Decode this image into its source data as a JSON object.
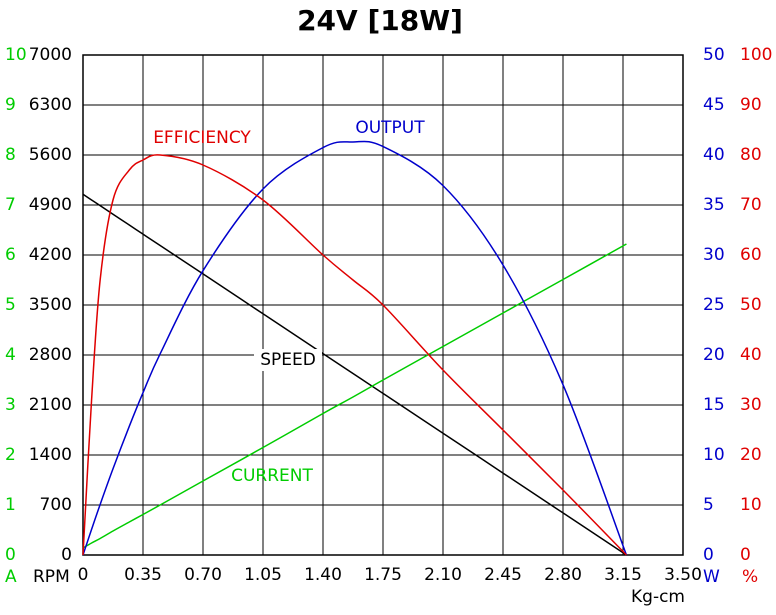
{
  "chart_data": {
    "type": "line",
    "title": "24V [18W]",
    "x_label": "Kg-cm",
    "x": [
      0,
      0.05,
      0.1,
      0.175,
      0.27,
      0.35,
      0.45,
      0.7,
      1.05,
      1.4,
      1.575,
      1.75,
      2.1,
      2.45,
      2.8,
      3.17
    ],
    "xlim": [
      0,
      3.5
    ],
    "xticks": [
      0,
      0.35,
      {
        "value": 0.7,
        "label": "0.70"
      },
      1.05,
      {
        "value": 1.4,
        "label": "1.40"
      },
      1.75,
      {
        "value": 2.1,
        "label": "2.10"
      },
      2.45,
      {
        "value": 2.8,
        "label": "2.80"
      },
      3.15,
      {
        "value": 3.5,
        "label": "3.50"
      }
    ],
    "axes": [
      {
        "label": "A",
        "color": "#00cc00",
        "lim": [
          0,
          10
        ],
        "ticks": [
          0,
          1,
          2,
          3,
          4,
          5,
          6,
          7,
          8,
          9,
          10
        ]
      },
      {
        "label": "RPM",
        "color": "#000000",
        "lim": [
          0,
          7000
        ],
        "ticks": [
          0,
          700,
          1400,
          2100,
          2800,
          3500,
          4200,
          4900,
          5600,
          6300,
          7000
        ]
      },
      {
        "label": "W",
        "color": "#0000cc",
        "lim": [
          0,
          50
        ],
        "ticks": [
          0,
          5,
          10,
          15,
          20,
          25,
          30,
          35,
          40,
          45,
          50
        ]
      },
      {
        "label": "%",
        "color": "#e00000",
        "lim": [
          0,
          100
        ],
        "ticks": [
          0,
          10,
          20,
          30,
          40,
          50,
          60,
          70,
          80,
          90,
          100
        ]
      }
    ],
    "grid": true,
    "series": [
      {
        "name": "SPEED",
        "color": "#000000",
        "axis": 1,
        "values": [
          5050,
          4970,
          4891,
          4771,
          4620,
          4492,
          4333,
          3935,
          3377,
          2820,
          2541,
          2262,
          1705,
          1147,
          589,
          0
        ]
      },
      {
        "name": "CURRENT",
        "color": "#00cc00",
        "axis": 0,
        "values": [
          0.14,
          0.24,
          0.33,
          0.48,
          0.66,
          0.81,
          1.0,
          1.48,
          2.15,
          2.83,
          3.16,
          3.5,
          4.17,
          4.84,
          5.51,
          6.22
        ]
      },
      {
        "name": "OUTPUT",
        "color": "#0000cc",
        "axis": 2,
        "values": [
          0,
          2.56,
          5.05,
          8.62,
          12.87,
          16.23,
          20.12,
          28.43,
          36.6,
          40.74,
          41.3,
          40.85,
          36.94,
          29.0,
          17.03,
          0
        ]
      },
      {
        "name": "EFFICIENCY",
        "color": "#e00000",
        "axis": 3,
        "values": [
          0,
          31,
          55,
          71,
          77,
          79,
          80,
          78,
          71,
          60,
          55,
          50,
          37,
          25,
          13,
          0
        ]
      }
    ]
  }
}
